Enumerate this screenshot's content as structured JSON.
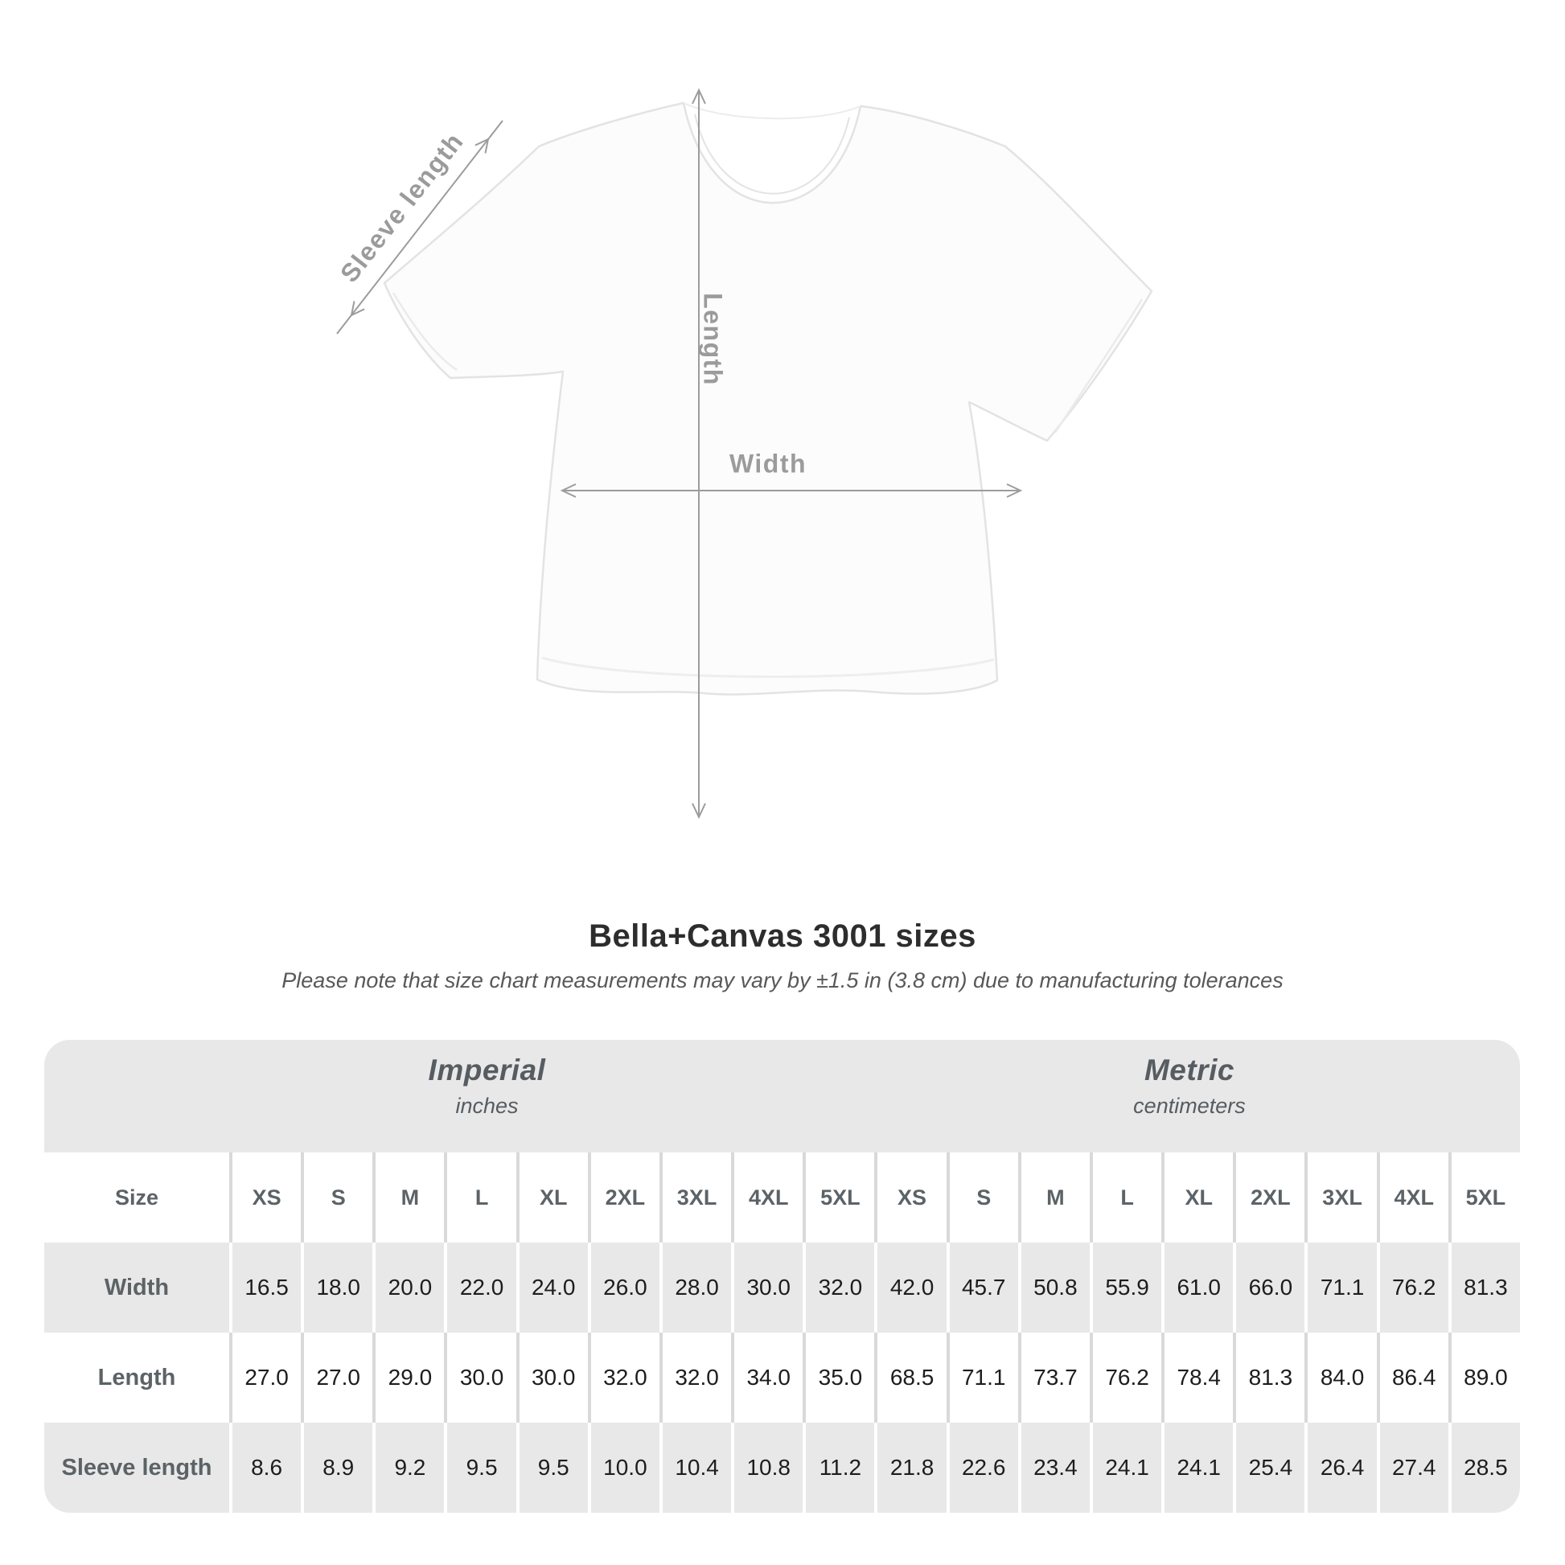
{
  "diagram": {
    "labels": {
      "sleeve_length": "Sleeve length",
      "length": "Length",
      "width": "Width"
    }
  },
  "title": "Bella+Canvas 3001 sizes",
  "subtitle": "Please note that size chart measurements may vary by ±1.5 in (3.8 cm) due to manufacturing tolerances",
  "table": {
    "size_header": "Size",
    "groups": [
      {
        "name": "Imperial",
        "unit": "inches"
      },
      {
        "name": "Metric",
        "unit": "centimeters"
      }
    ],
    "sizes": [
      "XS",
      "S",
      "M",
      "L",
      "XL",
      "2XL",
      "3XL",
      "4XL",
      "5XL"
    ],
    "rows": [
      {
        "label": "Width",
        "imperial": [
          "16.5",
          "18.0",
          "20.0",
          "22.0",
          "24.0",
          "26.0",
          "28.0",
          "30.0",
          "32.0"
        ],
        "metric": [
          "42.0",
          "45.7",
          "50.8",
          "55.9",
          "61.0",
          "66.0",
          "71.1",
          "76.2",
          "81.3"
        ]
      },
      {
        "label": "Length",
        "imperial": [
          "27.0",
          "27.0",
          "29.0",
          "30.0",
          "30.0",
          "32.0",
          "32.0",
          "34.0",
          "35.0"
        ],
        "metric": [
          "68.5",
          "71.1",
          "73.7",
          "76.2",
          "78.4",
          "81.3",
          "84.0",
          "86.4",
          "89.0"
        ]
      },
      {
        "label": "Sleeve length",
        "imperial": [
          "8.6",
          "8.9",
          "9.2",
          "9.5",
          "9.5",
          "10.0",
          "10.4",
          "10.8",
          "11.2"
        ],
        "metric": [
          "21.8",
          "22.6",
          "23.4",
          "24.1",
          "24.1",
          "25.4",
          "26.4",
          "27.4",
          "28.5"
        ]
      }
    ]
  },
  "colors": {
    "band_bg": "#e8e8e8",
    "alt_row_bg": "#e8e8e8",
    "separator": "#d9d9d9",
    "annotation_gray": "#9b9b9b",
    "title_text": "#2d2d2d",
    "header_text": "#5c6367",
    "value_text": "#1d1d1d"
  }
}
